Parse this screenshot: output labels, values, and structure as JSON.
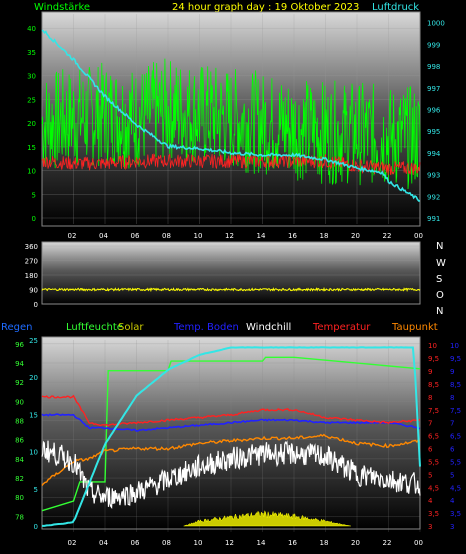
{
  "header": {
    "title": "24 hour graph day : 19 Oktober 2023",
    "left_label": "Windstärke",
    "right_label": "Luftdruck"
  },
  "legend": [
    {
      "label": "Regen",
      "color": "#1e6bff"
    },
    {
      "label": "Luftfeuchte",
      "color": "#33ff33"
    },
    {
      "label": "Solar",
      "color": "#cccc00"
    },
    {
      "label": "Temp. Boden",
      "color": "#2222ff"
    },
    {
      "label": "Windchill",
      "color": "#ffffff"
    },
    {
      "label": "Temperatur",
      "color": "#ff2222"
    },
    {
      "label": "Taupunkt",
      "color": "#ff8800"
    }
  ],
  "compass": [
    "N",
    "W",
    "S",
    "O",
    "N"
  ],
  "chart_data": [
    {
      "type": "line",
      "panel": "wind-pressure",
      "x_ticks": [
        "02",
        "04",
        "06",
        "08",
        "10",
        "12",
        "14",
        "16",
        "18",
        "20",
        "22",
        "00"
      ],
      "y_left_ticks": [
        "0",
        "5",
        "10",
        "15",
        "20",
        "25",
        "30",
        "35",
        "40"
      ],
      "y_right_ticks": [
        "991",
        "992",
        "993",
        "994",
        "995",
        "996",
        "997",
        "998",
        "999",
        "1000"
      ],
      "ylim_left": [
        0,
        43
      ],
      "ylim_right": [
        991,
        1000.4
      ],
      "series": [
        {
          "name": "Windstärke",
          "color": "#00ff00",
          "base": [
            20,
            21,
            22,
            21,
            23,
            22,
            21,
            20,
            19,
            18,
            18,
            17,
            17
          ]
        },
        {
          "name": "Temperatur",
          "color": "#ff2222",
          "base": [
            12,
            11.5,
            11.5,
            12,
            12,
            12,
            12,
            12,
            12,
            12,
            11,
            10.5,
            10.5
          ]
        },
        {
          "name": "Luftdruck",
          "color": "#33e6e6",
          "x": [
            0,
            1,
            2,
            3,
            4,
            5,
            6,
            7,
            8,
            9,
            10,
            10.8,
            11,
            12
          ],
          "y": [
            999.7,
            998.3,
            996.6,
            995.3,
            994.3,
            994.2,
            994.0,
            993.9,
            993.9,
            993.7,
            993.3,
            993.1,
            992.7,
            991.8
          ]
        }
      ]
    },
    {
      "type": "line",
      "panel": "wind-direction",
      "y_ticks": [
        "0",
        "90",
        "180",
        "270",
        "360"
      ],
      "ylim": [
        0,
        360
      ],
      "series": [
        {
          "name": "Windrichtung",
          "color": "#ffff00",
          "base": [
            90,
            90,
            90,
            90,
            90,
            90,
            90,
            90,
            90,
            90,
            90,
            90,
            90
          ]
        }
      ]
    },
    {
      "type": "line",
      "panel": "climate",
      "x_ticks": [
        "02",
        "04",
        "06",
        "08",
        "10",
        "12",
        "14",
        "16",
        "18",
        "20",
        "22",
        "00"
      ],
      "y_left_outer_ticks": [
        "0",
        "5",
        "10",
        "15",
        "20",
        "25"
      ],
      "y_left_inner_ticks": [
        "78",
        "80",
        "82",
        "84",
        "86",
        "88",
        "90",
        "92",
        "94",
        "96"
      ],
      "y_right_inner_ticks": [
        "3",
        "3,5",
        "4",
        "4,5",
        "5",
        "5,5",
        "6",
        "6,5",
        "7",
        "7,5",
        "8",
        "8,5",
        "9",
        "9,5",
        "10"
      ],
      "y_right_outer_ticks": [
        "3",
        "3,5",
        "4",
        "4,5",
        "5",
        "5,5",
        "6",
        "6,5",
        "7",
        "7,5",
        "8",
        "8,5",
        "9",
        "9,5",
        "10"
      ],
      "series": [
        {
          "name": "Regen",
          "color": "#33e6e6",
          "x": [
            0,
            1,
            2,
            3,
            4,
            5,
            6,
            7,
            8,
            9,
            10,
            11,
            11.8,
            12
          ],
          "y": [
            0,
            0.5,
            11,
            17.5,
            21,
            23,
            24,
            24,
            24,
            24,
            24,
            24,
            24,
            8
          ]
        },
        {
          "name": "Luftfeuchte",
          "color": "#33ff33",
          "x": [
            0,
            1,
            1.2,
            2,
            2.1,
            4,
            4.1,
            7,
            7.1,
            8,
            12
          ],
          "y": [
            78.6,
            79.6,
            81.6,
            81.6,
            93.2,
            93.2,
            94.2,
            94.2,
            94.6,
            94.6,
            93.4
          ]
        },
        {
          "name": "Temp. Boden",
          "color": "#2222ff",
          "x": [
            0,
            1,
            1.5,
            2,
            3,
            4,
            5,
            6,
            7,
            8,
            9,
            10,
            11,
            12
          ],
          "y": [
            7.3,
            7.3,
            6.8,
            6.8,
            6.7,
            6.8,
            6.9,
            7.0,
            7.1,
            7.1,
            7.0,
            7.0,
            7.0,
            6.8
          ]
        },
        {
          "name": "Temperatur",
          "color": "#ff2222",
          "x": [
            0,
            1,
            1.5,
            2,
            3,
            4,
            5,
            6,
            7,
            8,
            9,
            10,
            11,
            12
          ],
          "y": [
            8.0,
            8.0,
            7.0,
            6.9,
            7.0,
            7.1,
            7.2,
            7.3,
            7.5,
            7.5,
            7.2,
            7.1,
            7.0,
            7.1
          ]
        },
        {
          "name": "Taupunkt",
          "color": "#ff8800",
          "x": [
            0,
            1,
            1.5,
            2,
            3,
            4,
            5,
            6,
            7,
            8,
            9,
            10,
            11,
            12
          ],
          "y": [
            4.6,
            5.5,
            5.6,
            5.9,
            6.0,
            6.0,
            6.2,
            6.3,
            6.4,
            6.4,
            6.5,
            6.2,
            6.1,
            6.3
          ]
        },
        {
          "name": "Windchill",
          "color": "#ffffff",
          "x": [
            0,
            1,
            1.5,
            2,
            3,
            4,
            5,
            6,
            7,
            8,
            9,
            10,
            11,
            12
          ],
          "y": [
            6.0,
            5.5,
            4.3,
            4.1,
            4.3,
            4.8,
            5.3,
            5.6,
            5.8,
            5.8,
            5.7,
            5.0,
            4.8,
            4.6
          ]
        },
        {
          "name": "Solar",
          "color": "#cccc00",
          "x": [
            4.5,
            5,
            6,
            7,
            8,
            9,
            9.8
          ],
          "y": [
            0,
            0.6,
            1.1,
            1.5,
            1.2,
            0.6,
            0
          ]
        }
      ]
    }
  ]
}
